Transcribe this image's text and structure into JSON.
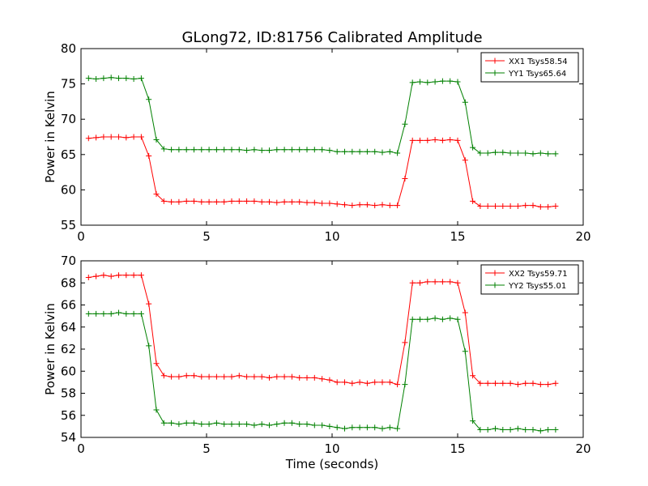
{
  "figure_title": "GLong72, ID:81756 Calibrated Amplitude",
  "chart_data": [
    {
      "type": "line",
      "title": "GLong72, ID:81756 Calibrated Amplitude",
      "xlabel": "",
      "ylabel": "Power in Kelvin",
      "xlim": [
        0,
        20
      ],
      "ylim": [
        55,
        80
      ],
      "xticks": [
        0,
        5,
        10,
        15,
        20
      ],
      "yticks": [
        55,
        60,
        65,
        70,
        75,
        80
      ],
      "grid": false,
      "legend_position": "top-right",
      "x": [
        0.3,
        0.6,
        0.9,
        1.2,
        1.5,
        1.8,
        2.1,
        2.4,
        2.7,
        3.0,
        3.3,
        3.6,
        3.9,
        4.2,
        4.5,
        4.8,
        5.1,
        5.4,
        5.7,
        6.0,
        6.3,
        6.6,
        6.9,
        7.2,
        7.5,
        7.8,
        8.1,
        8.4,
        8.7,
        9.0,
        9.3,
        9.6,
        9.9,
        10.2,
        10.5,
        10.8,
        11.1,
        11.4,
        11.7,
        12.0,
        12.3,
        12.6,
        12.9,
        13.2,
        13.5,
        13.8,
        14.1,
        14.4,
        14.7,
        15.0,
        15.3,
        15.6,
        15.9,
        16.2,
        16.5,
        16.8,
        17.1,
        17.4,
        17.7,
        18.0,
        18.3,
        18.6,
        18.9
      ],
      "series": [
        {
          "name": "XX1 Tsys58.54",
          "color": "#ff0000",
          "values": [
            67.3,
            67.4,
            67.5,
            67.5,
            67.5,
            67.4,
            67.5,
            67.5,
            64.8,
            59.4,
            58.4,
            58.3,
            58.3,
            58.4,
            58.4,
            58.3,
            58.3,
            58.3,
            58.3,
            58.4,
            58.4,
            58.4,
            58.4,
            58.3,
            58.3,
            58.2,
            58.3,
            58.3,
            58.3,
            58.2,
            58.2,
            58.1,
            58.1,
            58.0,
            57.9,
            57.8,
            57.9,
            57.9,
            57.8,
            57.9,
            57.8,
            57.8,
            61.6,
            67.0,
            67.0,
            67.0,
            67.1,
            67.0,
            67.1,
            67.0,
            64.2,
            58.4,
            57.7,
            57.7,
            57.7,
            57.7,
            57.7,
            57.7,
            57.8,
            57.8,
            57.6,
            57.6,
            57.7
          ]
        },
        {
          "name": "YY1 Tsys65.64",
          "color": "#008000",
          "values": [
            75.8,
            75.7,
            75.8,
            75.9,
            75.8,
            75.8,
            75.7,
            75.8,
            72.8,
            67.1,
            65.8,
            65.7,
            65.7,
            65.7,
            65.7,
            65.7,
            65.7,
            65.7,
            65.7,
            65.7,
            65.7,
            65.6,
            65.7,
            65.6,
            65.6,
            65.7,
            65.7,
            65.7,
            65.7,
            65.7,
            65.7,
            65.7,
            65.6,
            65.4,
            65.4,
            65.4,
            65.4,
            65.4,
            65.4,
            65.3,
            65.4,
            65.2,
            69.3,
            75.2,
            75.3,
            75.2,
            75.3,
            75.4,
            75.4,
            75.3,
            72.4,
            66.0,
            65.2,
            65.2,
            65.3,
            65.3,
            65.2,
            65.2,
            65.2,
            65.1,
            65.2,
            65.1,
            65.1
          ]
        }
      ]
    },
    {
      "type": "line",
      "title": "",
      "xlabel": "Time (seconds)",
      "ylabel": "Power in Kelvin",
      "xlim": [
        0,
        20
      ],
      "ylim": [
        54,
        70
      ],
      "xticks": [
        0,
        5,
        10,
        15,
        20
      ],
      "yticks": [
        54,
        56,
        58,
        60,
        62,
        64,
        66,
        68,
        70
      ],
      "grid": false,
      "legend_position": "top-right",
      "x": [
        0.3,
        0.6,
        0.9,
        1.2,
        1.5,
        1.8,
        2.1,
        2.4,
        2.7,
        3.0,
        3.3,
        3.6,
        3.9,
        4.2,
        4.5,
        4.8,
        5.1,
        5.4,
        5.7,
        6.0,
        6.3,
        6.6,
        6.9,
        7.2,
        7.5,
        7.8,
        8.1,
        8.4,
        8.7,
        9.0,
        9.3,
        9.6,
        9.9,
        10.2,
        10.5,
        10.8,
        11.1,
        11.4,
        11.7,
        12.0,
        12.3,
        12.6,
        12.9,
        13.2,
        13.5,
        13.8,
        14.1,
        14.4,
        14.7,
        15.0,
        15.3,
        15.6,
        15.9,
        16.2,
        16.5,
        16.8,
        17.1,
        17.4,
        17.7,
        18.0,
        18.3,
        18.6,
        18.9
      ],
      "series": [
        {
          "name": "XX2 Tsys59.71",
          "color": "#ff0000",
          "values": [
            68.5,
            68.6,
            68.7,
            68.6,
            68.7,
            68.7,
            68.7,
            68.7,
            66.1,
            60.7,
            59.6,
            59.5,
            59.5,
            59.6,
            59.6,
            59.5,
            59.5,
            59.5,
            59.5,
            59.5,
            59.6,
            59.5,
            59.5,
            59.5,
            59.4,
            59.5,
            59.5,
            59.5,
            59.4,
            59.4,
            59.4,
            59.3,
            59.2,
            59.0,
            59.0,
            58.9,
            59.0,
            58.9,
            59.0,
            59.0,
            59.0,
            58.8,
            62.6,
            68.0,
            68.0,
            68.1,
            68.1,
            68.1,
            68.1,
            68.0,
            65.3,
            59.6,
            58.9,
            58.9,
            58.9,
            58.9,
            58.9,
            58.8,
            58.9,
            58.9,
            58.8,
            58.8,
            58.9
          ]
        },
        {
          "name": "YY2 Tsys55.01",
          "color": "#008000",
          "values": [
            65.2,
            65.2,
            65.2,
            65.2,
            65.3,
            65.2,
            65.2,
            65.2,
            62.3,
            56.5,
            55.3,
            55.3,
            55.2,
            55.3,
            55.3,
            55.2,
            55.2,
            55.3,
            55.2,
            55.2,
            55.2,
            55.2,
            55.1,
            55.2,
            55.1,
            55.2,
            55.3,
            55.3,
            55.2,
            55.2,
            55.1,
            55.1,
            55.0,
            54.9,
            54.8,
            54.9,
            54.9,
            54.9,
            54.9,
            54.8,
            54.9,
            54.8,
            58.8,
            64.7,
            64.7,
            64.7,
            64.8,
            64.7,
            64.8,
            64.7,
            61.8,
            55.5,
            54.7,
            54.7,
            54.8,
            54.7,
            54.7,
            54.8,
            54.7,
            54.7,
            54.6,
            54.7,
            54.7
          ]
        }
      ]
    }
  ]
}
